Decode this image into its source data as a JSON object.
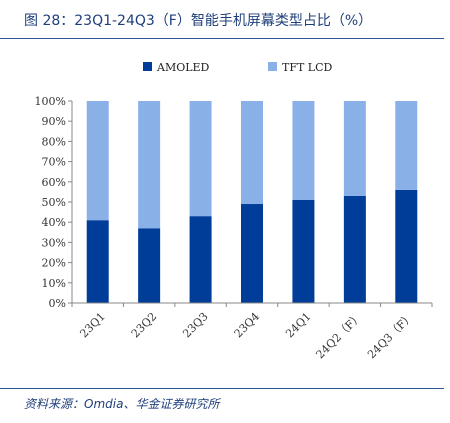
{
  "title": "图 28：23Q1-24Q3（F）智能手机屏幕类型占比（%）",
  "source": "资料来源：Omdia、华金证券研究所",
  "chart_data": {
    "type": "bar",
    "stacked": true,
    "title": "",
    "xlabel": "",
    "ylabel": "",
    "categories": [
      "23Q1",
      "23Q2",
      "23Q3",
      "23Q4",
      "24Q1",
      "24Q2（F）",
      "24Q3（F）"
    ],
    "series": [
      {
        "name": "AMOLED",
        "color": "#003d99",
        "values": [
          41,
          37,
          43,
          49,
          51,
          53,
          56
        ]
      },
      {
        "name": "TFT LCD",
        "color": "#8ab0e8",
        "values": [
          59,
          63,
          57,
          51,
          49,
          47,
          44
        ]
      }
    ],
    "ylim": [
      0,
      100
    ],
    "yticks": [
      "0%",
      "10%",
      "20%",
      "30%",
      "40%",
      "50%",
      "60%",
      "70%",
      "80%",
      "90%",
      "100%"
    ],
    "grid": false,
    "legend": "top-center"
  }
}
